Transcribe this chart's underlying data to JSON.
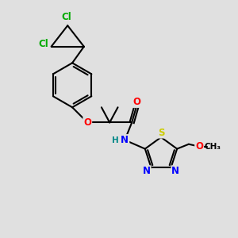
{
  "bg_color": "#e0e0e0",
  "bond_color": "#000000",
  "bond_width": 1.5,
  "atom_colors": {
    "Cl": "#00aa00",
    "O": "#ff0000",
    "N": "#0000ff",
    "S": "#cccc00",
    "H": "#008888",
    "C": "#000000"
  },
  "font_size_atom": 8.5,
  "font_size_small": 7.5
}
